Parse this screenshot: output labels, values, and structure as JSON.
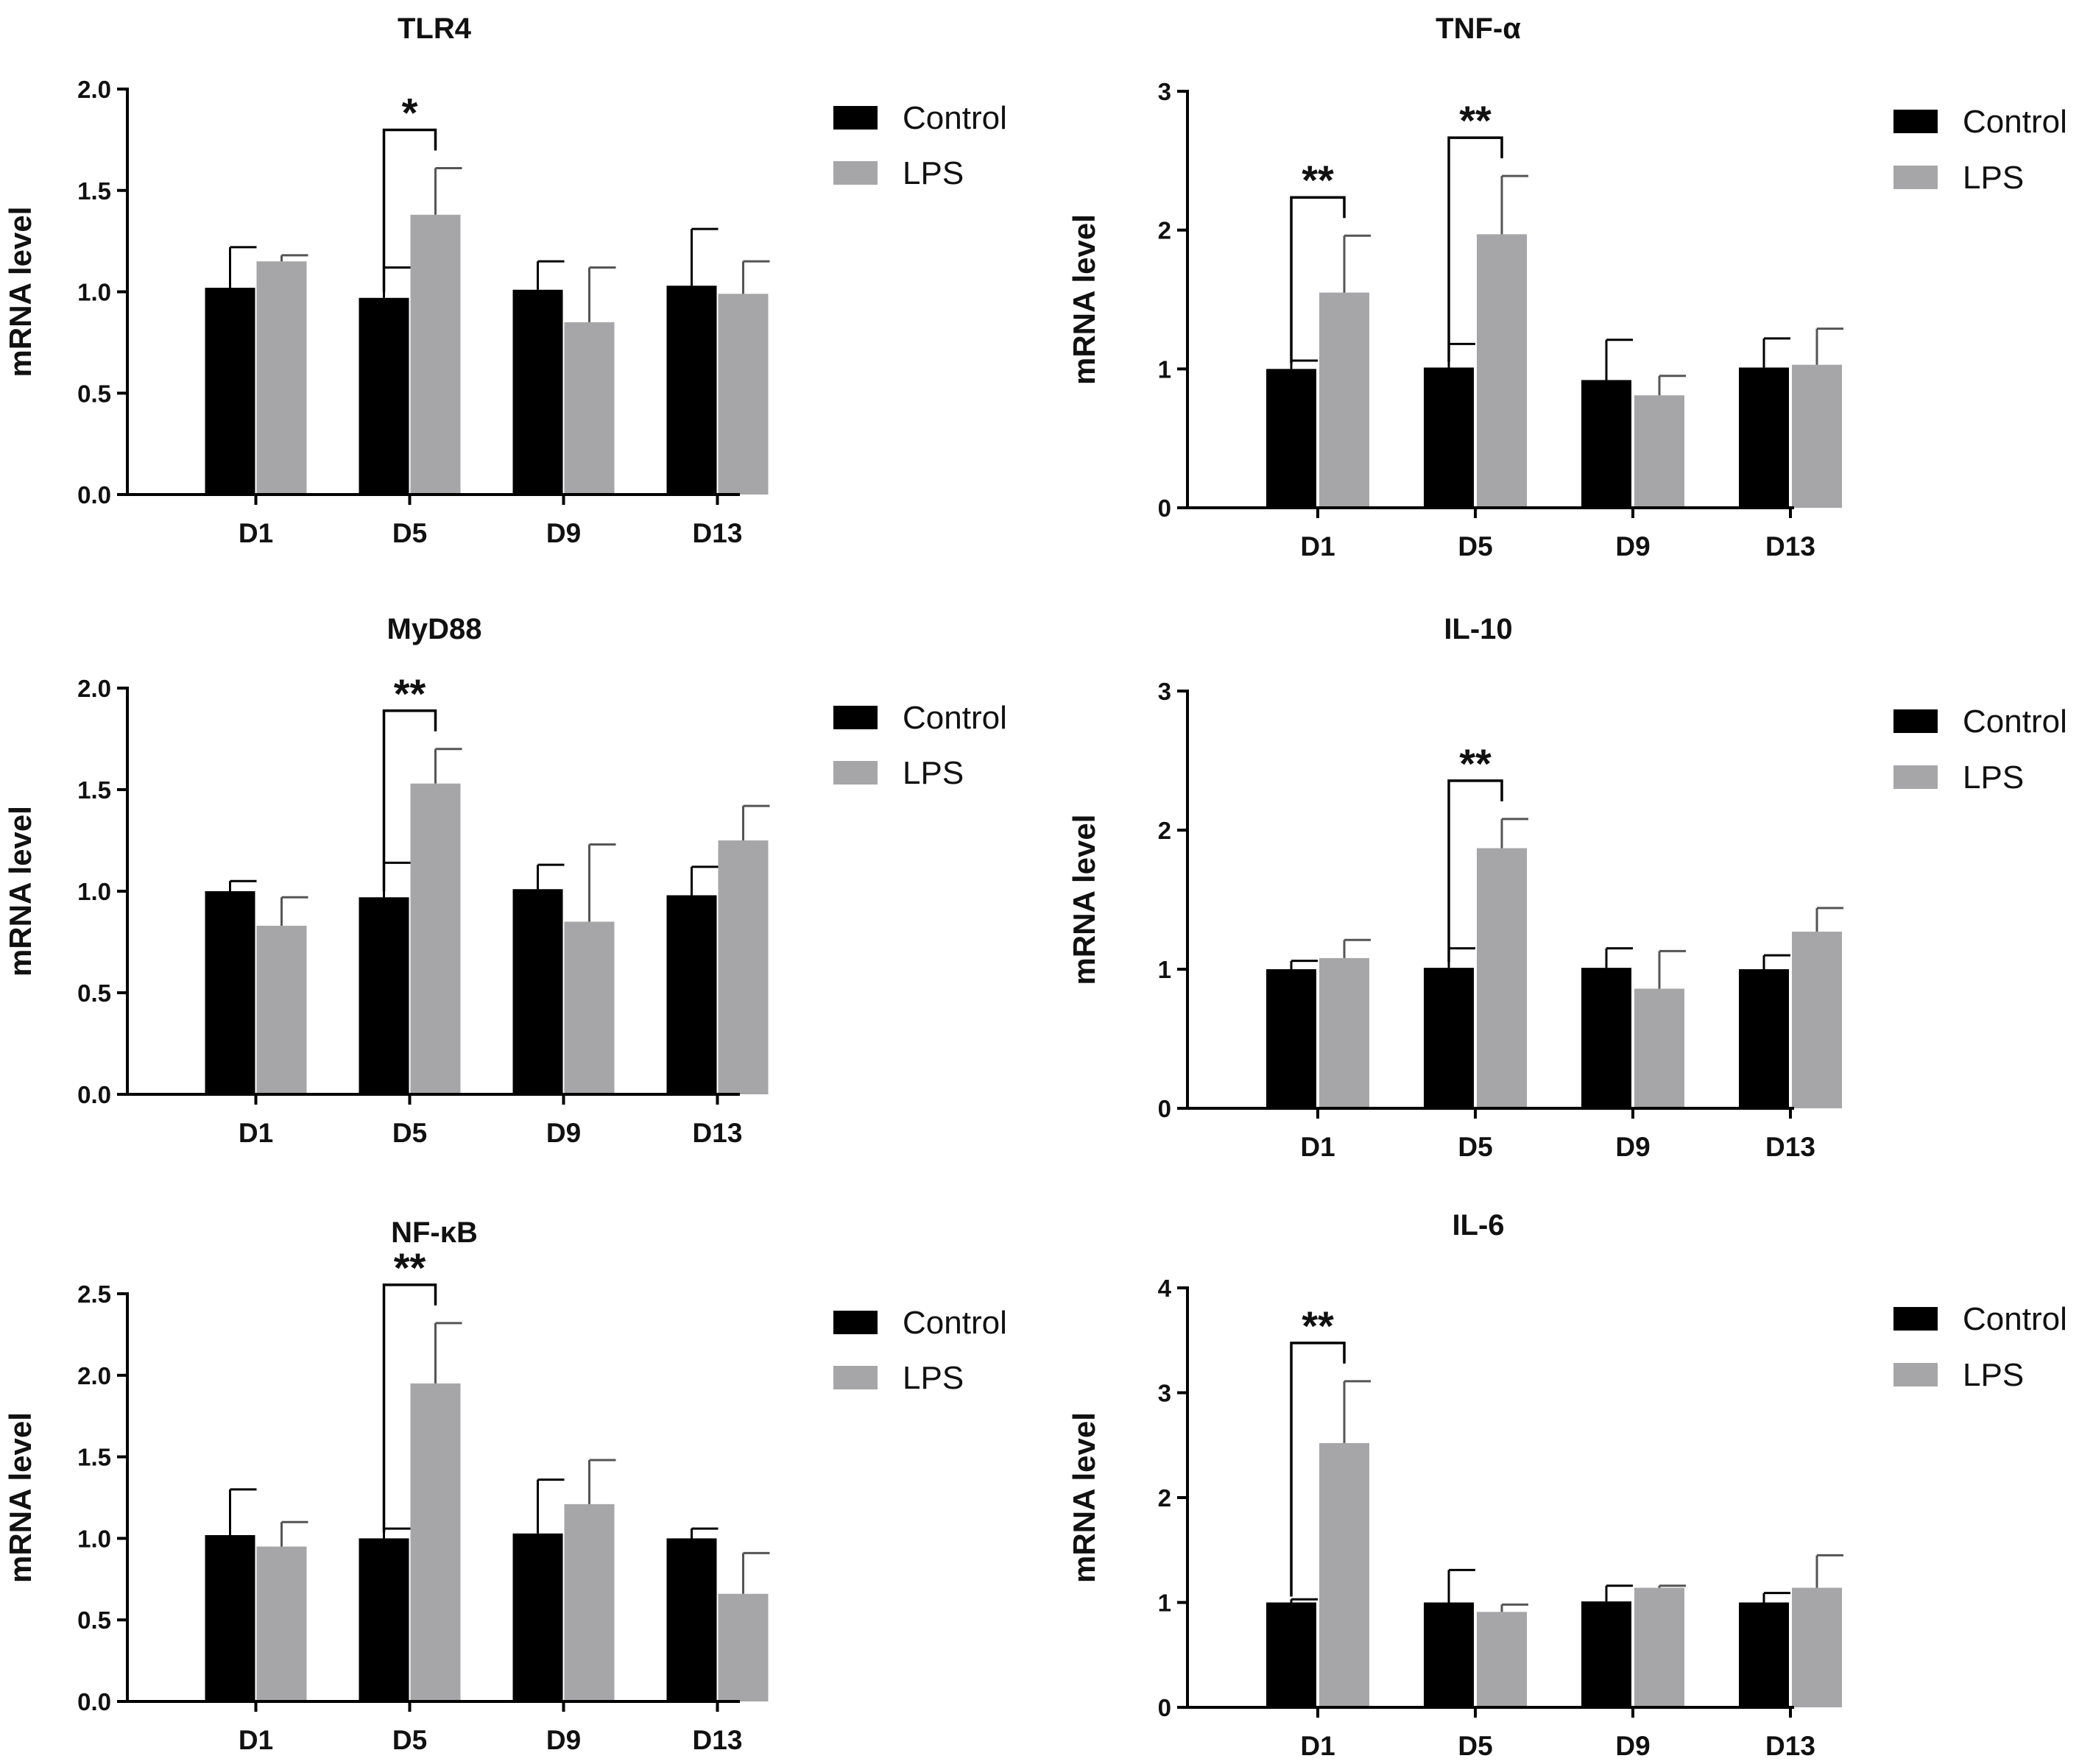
{
  "chart_data": [
    {
      "type": "bar",
      "title": "TLR4",
      "xlabel": "",
      "ylabel": "mRNA level",
      "ylim": [
        0,
        2.0
      ],
      "yticks": [
        "0.0",
        "0.5",
        "1.0",
        "1.5",
        "2.0"
      ],
      "categories": [
        "D1",
        "D5",
        "D9",
        "D13"
      ],
      "series": [
        {
          "name": "Control",
          "color": "#000000",
          "values": [
            1.02,
            0.97,
            1.01,
            1.03
          ],
          "errors": [
            0.2,
            0.15,
            0.14,
            0.28
          ]
        },
        {
          "name": "LPS",
          "color": "#a6a6a8",
          "values": [
            1.15,
            1.38,
            0.85,
            0.99
          ],
          "errors": [
            0.03,
            0.23,
            0.27,
            0.16
          ]
        }
      ],
      "significance": [
        {
          "category": "D5",
          "label": "*"
        }
      ]
    },
    {
      "type": "bar",
      "title": "TNF-α",
      "xlabel": "",
      "ylabel": "mRNA level",
      "ylim": [
        0,
        3
      ],
      "yticks": [
        "0",
        "1",
        "2",
        "3"
      ],
      "categories": [
        "D1",
        "D5",
        "D9",
        "D13"
      ],
      "series": [
        {
          "name": "Control",
          "color": "#000000",
          "values": [
            1.0,
            1.01,
            0.92,
            1.01
          ],
          "errors": [
            0.06,
            0.17,
            0.29,
            0.21
          ]
        },
        {
          "name": "LPS",
          "color": "#a6a6a8",
          "values": [
            1.55,
            1.97,
            0.81,
            1.03
          ],
          "errors": [
            0.41,
            0.42,
            0.14,
            0.26
          ]
        }
      ],
      "significance": [
        {
          "category": "D1",
          "label": "**"
        },
        {
          "category": "D5",
          "label": "**"
        }
      ]
    },
    {
      "type": "bar",
      "title": "MyD88",
      "xlabel": "",
      "ylabel": "mRNA level",
      "ylim": [
        0,
        2.0
      ],
      "yticks": [
        "0.0",
        "0.5",
        "1.0",
        "1.5",
        "2.0"
      ],
      "categories": [
        "D1",
        "D5",
        "D9",
        "D13"
      ],
      "series": [
        {
          "name": "Control",
          "color": "#000000",
          "values": [
            1.0,
            0.97,
            1.01,
            0.98
          ],
          "errors": [
            0.05,
            0.17,
            0.12,
            0.14
          ]
        },
        {
          "name": "LPS",
          "color": "#a6a6a8",
          "values": [
            0.83,
            1.53,
            0.85,
            1.25
          ],
          "errors": [
            0.14,
            0.17,
            0.38,
            0.17
          ]
        }
      ],
      "significance": [
        {
          "category": "D5",
          "label": "**"
        }
      ]
    },
    {
      "type": "bar",
      "title": "IL-10",
      "xlabel": "",
      "ylabel": "mRNA level",
      "ylim": [
        0,
        3
      ],
      "yticks": [
        "0",
        "1",
        "2",
        "3"
      ],
      "categories": [
        "D1",
        "D5",
        "D9",
        "D13"
      ],
      "series": [
        {
          "name": "Control",
          "color": "#000000",
          "values": [
            1.0,
            1.01,
            1.01,
            1.0
          ],
          "errors": [
            0.06,
            0.14,
            0.14,
            0.1
          ]
        },
        {
          "name": "LPS",
          "color": "#a6a6a8",
          "values": [
            1.08,
            1.87,
            0.86,
            1.27
          ],
          "errors": [
            0.13,
            0.21,
            0.27,
            0.17
          ]
        }
      ],
      "significance": [
        {
          "category": "D5",
          "label": "**"
        }
      ]
    },
    {
      "type": "bar",
      "title": "NF-κB",
      "xlabel": "",
      "ylabel": "mRNA level",
      "ylim": [
        0,
        2.5
      ],
      "yticks": [
        "0.0",
        "0.5",
        "1.0",
        "1.5",
        "2.0",
        "2.5"
      ],
      "categories": [
        "D1",
        "D5",
        "D9",
        "D13"
      ],
      "series": [
        {
          "name": "Control",
          "color": "#000000",
          "values": [
            1.02,
            1.0,
            1.03,
            1.0
          ],
          "errors": [
            0.28,
            0.06,
            0.33,
            0.06
          ]
        },
        {
          "name": "LPS",
          "color": "#a6a6a8",
          "values": [
            0.95,
            1.95,
            1.21,
            0.66
          ],
          "errors": [
            0.15,
            0.37,
            0.27,
            0.25
          ]
        }
      ],
      "significance": [
        {
          "category": "D5",
          "label": "**"
        }
      ]
    },
    {
      "type": "bar",
      "title": "IL-6",
      "xlabel": "",
      "ylabel": "mRNA level",
      "ylim": [
        0,
        4
      ],
      "yticks": [
        "0",
        "1",
        "2",
        "3",
        "4"
      ],
      "categories": [
        "D1",
        "D5",
        "D9",
        "D13"
      ],
      "series": [
        {
          "name": "Control",
          "color": "#000000",
          "values": [
            1.0,
            1.0,
            1.01,
            1.0
          ],
          "errors": [
            0.03,
            0.31,
            0.15,
            0.09
          ]
        },
        {
          "name": "LPS",
          "color": "#a6a6a8",
          "values": [
            2.52,
            0.91,
            1.14,
            1.14
          ],
          "errors": [
            0.59,
            0.07,
            0.02,
            0.31
          ]
        }
      ],
      "significance": [
        {
          "category": "D1",
          "label": "**"
        }
      ]
    }
  ]
}
